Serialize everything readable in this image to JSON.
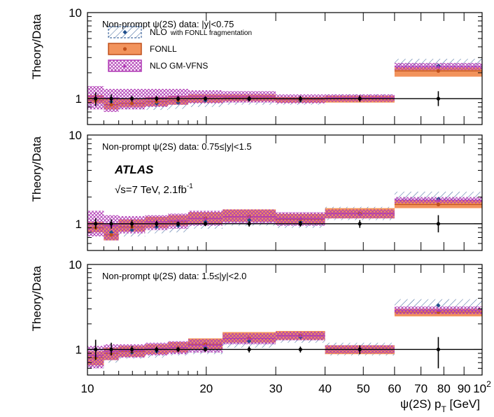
{
  "chart_data": {
    "type": "ratio-bands",
    "figure": {
      "experiment": "ATLAS",
      "energy": "√s=7 TeV, 2.1fb",
      "lumi_sup": "-1",
      "ylabel": "Theory/Data",
      "xlabel_main": "ψ(2S) p",
      "xlabel_sub": "T",
      "xlabel_unit": " [GeV]",
      "xlim": [
        10,
        100
      ],
      "ylim": [
        0.5,
        10
      ],
      "xscale": "log",
      "yscale": "log",
      "x_ticks": [
        "10",
        "20",
        "30",
        "40",
        "50",
        "60",
        "70",
        "80",
        "90",
        "10"
      ],
      "x_tick_values": [
        10,
        20,
        30,
        40,
        50,
        60,
        70,
        80,
        90,
        100
      ],
      "x_tick_last_sup": "2",
      "y_ticks": [
        "1",
        "10"
      ],
      "y_tick_values": [
        1,
        10
      ],
      "colors": {
        "nlo": "#1f4e8c",
        "fonll": "#f2935c",
        "fonll_edge": "#c0501c",
        "gmvfns": "#b03ab5",
        "data": "#000000"
      }
    },
    "legend": [
      {
        "label": "NLO",
        "sublabel": "with FONLL fragmentation",
        "series": "nlo"
      },
      {
        "label": "FONLL",
        "sublabel": "",
        "series": "fonll"
      },
      {
        "label": "NLO GM-VFNS",
        "sublabel": "",
        "series": "gmvfns"
      }
    ],
    "panels": [
      {
        "label": "Non-prompt ψ(2S) data: |y|<0.75",
        "bins": [
          [
            10,
            11,
            0.95,
            0.82,
            1.1,
            0.95,
            0.88,
            1.1,
            1.05,
            0.75,
            1.4,
            1.0,
            0.82,
            1.18
          ],
          [
            11,
            12,
            0.92,
            0.78,
            1.05,
            0.85,
            0.75,
            1.0,
            1.02,
            0.7,
            1.3,
            1.0,
            0.88,
            1.12
          ],
          [
            12,
            14,
            0.88,
            0.75,
            1.02,
            0.88,
            0.8,
            1.0,
            1.0,
            0.75,
            1.3,
            1.0,
            0.92,
            1.08
          ],
          [
            14,
            16,
            0.88,
            0.74,
            1.02,
            0.92,
            0.82,
            1.05,
            1.02,
            0.8,
            1.3,
            1.0,
            0.93,
            1.07
          ],
          [
            16,
            18,
            0.9,
            0.76,
            1.05,
            0.95,
            0.85,
            1.08,
            1.05,
            0.85,
            1.3,
            1.0,
            0.93,
            1.07
          ],
          [
            18,
            22,
            0.95,
            0.8,
            1.1,
            1.0,
            0.9,
            1.12,
            1.05,
            0.88,
            1.25,
            1.0,
            0.94,
            1.06
          ],
          [
            22,
            30,
            0.98,
            0.85,
            1.12,
            1.02,
            0.93,
            1.12,
            1.05,
            0.9,
            1.22,
            1.0,
            0.93,
            1.07
          ],
          [
            30,
            40,
            0.95,
            0.85,
            1.08,
            0.98,
            0.9,
            1.05,
            1.0,
            0.88,
            1.12,
            1.0,
            0.92,
            1.08
          ],
          [
            40,
            60,
            1.0,
            0.9,
            1.12,
            1.0,
            0.9,
            1.08,
            1.02,
            0.92,
            1.12,
            1.0,
            0.92,
            1.09
          ],
          [
            60,
            100,
            2.4,
            2.0,
            2.9,
            2.1,
            1.8,
            2.3,
            2.35,
            2.15,
            2.6,
            1.0,
            0.82,
            1.22
          ]
        ]
      },
      {
        "label": "Non-prompt ψ(2S) data: 0.75≤|y|<1.5",
        "bins": [
          [
            10,
            11,
            0.9,
            0.75,
            1.05,
            0.9,
            0.8,
            1.05,
            1.0,
            0.72,
            1.4,
            1.0,
            0.88,
            1.15
          ],
          [
            11,
            12,
            0.8,
            0.65,
            1.0,
            0.75,
            0.65,
            1.0,
            0.95,
            0.65,
            1.25,
            1.0,
            0.88,
            1.12
          ],
          [
            12,
            14,
            0.85,
            0.72,
            1.02,
            0.92,
            0.82,
            1.12,
            1.0,
            0.78,
            1.22,
            1.0,
            0.9,
            1.1
          ],
          [
            14,
            16,
            0.92,
            0.78,
            1.1,
            1.0,
            0.9,
            1.2,
            1.05,
            0.85,
            1.25,
            1.0,
            0.92,
            1.08
          ],
          [
            16,
            18,
            0.95,
            0.8,
            1.15,
            1.05,
            0.95,
            1.25,
            1.08,
            0.88,
            1.3,
            1.0,
            0.94,
            1.06
          ],
          [
            18,
            22,
            1.05,
            0.88,
            1.25,
            1.15,
            1.0,
            1.35,
            1.15,
            0.95,
            1.4,
            1.0,
            0.94,
            1.06
          ],
          [
            22,
            30,
            1.1,
            0.95,
            1.35,
            1.2,
            1.05,
            1.45,
            1.2,
            1.0,
            1.45,
            1.0,
            0.93,
            1.07
          ],
          [
            30,
            40,
            1.05,
            0.9,
            1.25,
            1.12,
            1.0,
            1.3,
            1.15,
            0.95,
            1.35,
            1.0,
            0.93,
            1.07
          ],
          [
            40,
            60,
            1.3,
            1.1,
            1.55,
            1.3,
            1.15,
            1.5,
            1.3,
            1.15,
            1.45,
            1.0,
            0.9,
            1.1
          ],
          [
            60,
            100,
            1.9,
            1.6,
            2.3,
            1.65,
            1.5,
            1.85,
            1.85,
            1.7,
            2.0,
            1.0,
            0.8,
            1.25
          ]
        ]
      },
      {
        "label": "Non-prompt ψ(2S) data: 1.5≤|y|<2.0",
        "bins": [
          [
            10,
            11,
            0.8,
            0.6,
            0.95,
            0.8,
            0.65,
            0.95,
            0.85,
            0.6,
            1.1,
            1.0,
            0.75,
            1.3
          ],
          [
            11,
            12,
            0.9,
            0.7,
            1.05,
            0.9,
            0.75,
            1.05,
            0.95,
            0.75,
            1.15,
            1.0,
            0.85,
            1.2
          ],
          [
            12,
            14,
            0.92,
            0.78,
            1.08,
            0.95,
            0.82,
            1.1,
            0.98,
            0.8,
            1.15,
            1.0,
            0.9,
            1.1
          ],
          [
            14,
            16,
            0.95,
            0.8,
            1.12,
            1.0,
            0.88,
            1.15,
            1.02,
            0.85,
            1.2,
            1.0,
            0.92,
            1.08
          ],
          [
            16,
            18,
            1.0,
            0.85,
            1.18,
            1.05,
            0.92,
            1.22,
            1.05,
            0.88,
            1.25,
            1.0,
            0.93,
            1.07
          ],
          [
            18,
            22,
            1.05,
            0.88,
            1.25,
            1.15,
            1.0,
            1.35,
            1.12,
            0.92,
            1.32,
            1.0,
            0.94,
            1.06
          ],
          [
            22,
            30,
            1.25,
            1.05,
            1.5,
            1.35,
            1.2,
            1.6,
            1.35,
            1.15,
            1.55,
            1.0,
            0.92,
            1.08
          ],
          [
            30,
            40,
            1.4,
            1.2,
            1.65,
            1.45,
            1.3,
            1.65,
            1.45,
            1.28,
            1.62,
            1.0,
            0.92,
            1.08
          ],
          [
            40,
            60,
            1.0,
            0.85,
            1.2,
            1.0,
            0.88,
            1.12,
            1.0,
            0.9,
            1.12,
            1.0,
            0.88,
            1.12
          ],
          [
            60,
            100,
            3.3,
            2.8,
            3.9,
            2.75,
            2.45,
            3.0,
            2.9,
            2.6,
            3.2,
            1.0,
            0.6,
            1.4
          ]
        ]
      }
    ],
    "bin_columns": [
      "pt_lo",
      "pt_hi",
      "nlo_c",
      "nlo_lo",
      "nlo_hi",
      "fonll_c",
      "fonll_lo",
      "fonll_hi",
      "gm_c",
      "gm_lo",
      "gm_hi",
      "data_c",
      "data_lo",
      "data_hi"
    ]
  }
}
